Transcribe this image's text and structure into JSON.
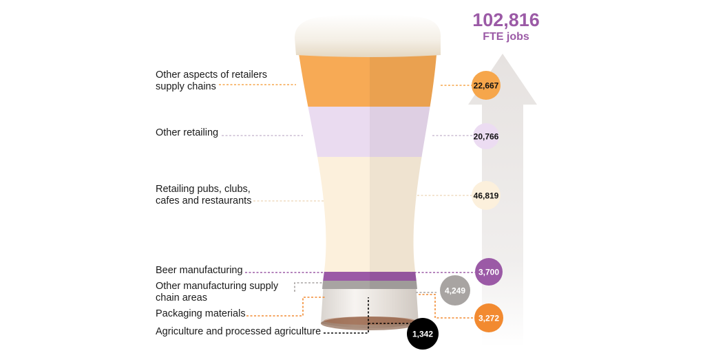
{
  "total": {
    "value": "102,816",
    "unit": "FTE jobs"
  },
  "chart_data": {
    "type": "bar",
    "title": "",
    "total_label": "102,816 FTE jobs",
    "categories": [
      "Other aspects of retailers supply chains",
      "Other retailing",
      "Retailing pubs, clubs, cafes and restaurants",
      "Beer manufacturing",
      "Other manufacturing supply chain areas",
      "Packaging materials",
      "Agriculture and processed agriculture"
    ],
    "values": [
      22667,
      20766,
      46819,
      3700,
      4249,
      3272,
      1342
    ],
    "colors": [
      "#f6a64b",
      "#e9d7ef",
      "#fcefd9",
      "#9b5aa6",
      "#a8a4a2",
      "#f28a30",
      "#000000"
    ]
  },
  "segments": [
    {
      "label": "Other aspects of retailers\nsupply chains",
      "value_text": "22,667",
      "color": "#f7aa55",
      "circle_color": "#f6a64b",
      "circle_text": "#111111"
    },
    {
      "label": "Other retailing",
      "value_text": "20,766",
      "color": "#eadbf0",
      "circle_color": "#ecdcf2",
      "circle_text": "#111111"
    },
    {
      "label": "Retailing pubs, clubs,\ncafes and restaurants",
      "value_text": "46,819",
      "color": "#fcf0dc",
      "circle_color": "#fcf0dc",
      "circle_text": "#111111"
    },
    {
      "label": "Beer manufacturing",
      "value_text": "3,700",
      "color": "#9b5aa6",
      "circle_color": "#9b5aa6",
      "circle_text": "#ffffff"
    },
    {
      "label": "Other manufacturing supply\nchain areas",
      "value_text": "4,249",
      "color": "#a8a4a2",
      "circle_color": "#a8a4a2",
      "circle_text": "#ffffff"
    },
    {
      "label": "Packaging materials",
      "value_text": "3,272",
      "color": "#f28a30",
      "circle_color": "#f28a30",
      "circle_text": "#ffffff"
    },
    {
      "label": "Agriculture and processed agriculture",
      "value_text": "1,342",
      "color": "#000000",
      "circle_color": "#000000",
      "circle_text": "#ffffff"
    }
  ]
}
